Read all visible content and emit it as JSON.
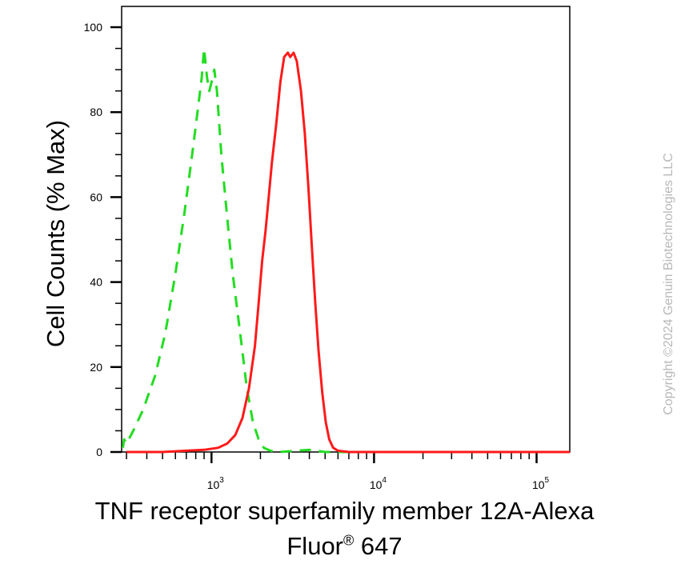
{
  "chart_data": {
    "type": "line",
    "ylabel": "Cell Counts (% Max)",
    "xlabel_line1": "TNF receptor superfamily member 12A-Alexa",
    "xlabel_line2_main": "Fluor",
    "xlabel_line2_reg": "®",
    "xlabel_line2_tail": " 647",
    "copyright": "Copyright ©2024 Genuin Biotechnologies LLC",
    "x_scale": "log",
    "xlim": [
      280,
      160000
    ],
    "ylim": [
      0,
      100
    ],
    "y_ticks": [
      0,
      20,
      40,
      60,
      80,
      100
    ],
    "x_ticks": [
      {
        "base": "10",
        "exp": "3",
        "value": 1000
      },
      {
        "base": "10",
        "exp": "4",
        "value": 10000
      },
      {
        "base": "10",
        "exp": "5",
        "value": 100000
      }
    ],
    "grid": false,
    "legend": "none",
    "series": [
      {
        "color": "#22dd22",
        "style": "dashed",
        "points": [
          [
            285,
            1
          ],
          [
            290,
            3
          ],
          [
            300,
            2
          ],
          [
            330,
            5
          ],
          [
            380,
            10
          ],
          [
            450,
            18
          ],
          [
            520,
            28
          ],
          [
            600,
            42
          ],
          [
            680,
            56
          ],
          [
            760,
            70
          ],
          [
            820,
            80
          ],
          [
            870,
            88
          ],
          [
            900,
            95
          ],
          [
            940,
            88
          ],
          [
            970,
            85
          ],
          [
            1000,
            87
          ],
          [
            1040,
            90
          ],
          [
            1080,
            85
          ],
          [
            1150,
            70
          ],
          [
            1250,
            55
          ],
          [
            1350,
            42
          ],
          [
            1500,
            28
          ],
          [
            1650,
            15
          ],
          [
            1800,
            7
          ],
          [
            1950,
            3
          ],
          [
            2100,
            1
          ],
          [
            2300,
            0.3
          ],
          [
            2600,
            0
          ],
          [
            4000,
            0.5
          ],
          [
            5000,
            0
          ],
          [
            9000,
            0
          ],
          [
            160000,
            0
          ]
        ]
      },
      {
        "color": "#ff1a1a",
        "style": "solid",
        "points": [
          [
            300,
            0
          ],
          [
            500,
            0
          ],
          [
            700,
            0.3
          ],
          [
            900,
            0.5
          ],
          [
            1100,
            1
          ],
          [
            1250,
            2
          ],
          [
            1400,
            4
          ],
          [
            1550,
            8
          ],
          [
            1700,
            15
          ],
          [
            1850,
            25
          ],
          [
            1950,
            35
          ],
          [
            2050,
            45
          ],
          [
            2150,
            52
          ],
          [
            2250,
            60
          ],
          [
            2350,
            68
          ],
          [
            2500,
            77
          ],
          [
            2650,
            87
          ],
          [
            2800,
            93
          ],
          [
            2950,
            94
          ],
          [
            3050,
            93
          ],
          [
            3200,
            94
          ],
          [
            3350,
            92
          ],
          [
            3550,
            85
          ],
          [
            3750,
            75
          ],
          [
            3950,
            62
          ],
          [
            4150,
            48
          ],
          [
            4350,
            35
          ],
          [
            4550,
            24
          ],
          [
            4800,
            14
          ],
          [
            5050,
            7
          ],
          [
            5300,
            3
          ],
          [
            5600,
            1
          ],
          [
            6000,
            0.3
          ],
          [
            7000,
            0
          ],
          [
            20000,
            0
          ],
          [
            160000,
            0
          ]
        ]
      }
    ]
  }
}
